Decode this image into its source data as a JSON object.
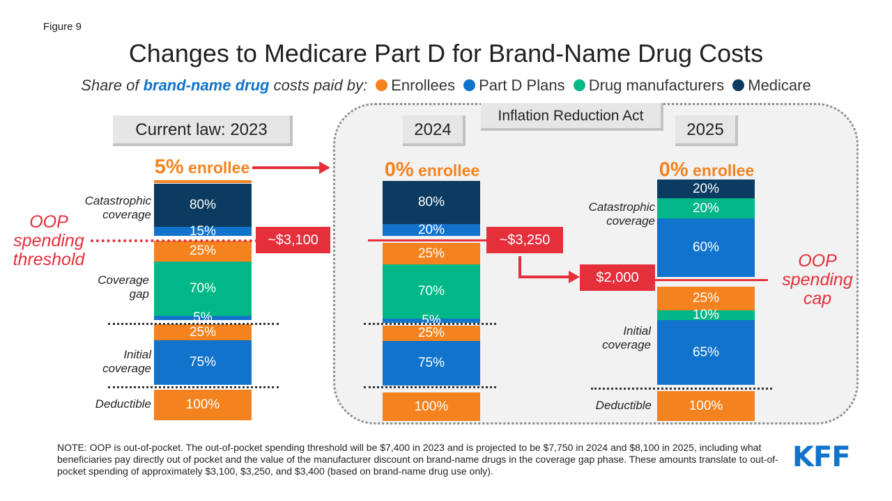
{
  "figure_label": "Figure 9",
  "title": "Changes to Medicare Part D for Brand-Name Drug Costs",
  "legend": {
    "prefix": "Share of",
    "highlight": "brand-name drug",
    "suffix": "costs paid by:",
    "items": [
      {
        "label": "Enrollees",
        "color": "#f4831f"
      },
      {
        "label": "Part D Plans",
        "color": "#1173cb"
      },
      {
        "label": "Drug manufacturers",
        "color": "#00b887"
      },
      {
        "label": "Medicare",
        "color": "#0b3b60"
      }
    ]
  },
  "ira_label": "Inflation Reduction Act",
  "columns": {
    "c2023": {
      "label": "Current law: 2023",
      "enrollee_pct": "5%",
      "enrollee_word": "enrollee"
    },
    "c2024": {
      "label": "2024",
      "enrollee_pct": "0%",
      "enrollee_word": "enrollee"
    },
    "c2025": {
      "label": "2025",
      "enrollee_pct": "0%",
      "enrollee_word": "enrollee"
    }
  },
  "phases": {
    "catastrophic": "Catastrophic coverage",
    "gap": "Coverage gap",
    "initial": "Initial coverage",
    "deductible": "Deductible"
  },
  "markers": {
    "threshold_2023": "~$3,100",
    "threshold_2024": "~$3,250",
    "cap_2025": "$2,000",
    "oop_threshold_label": "OOP spending threshold",
    "oop_cap_label": "OOP spending cap"
  },
  "chart_data": {
    "type": "bar",
    "title": "Changes to Medicare Part D for Brand-Name Drug Costs",
    "categories": [
      "Current law: 2023",
      "2024",
      "2025"
    ],
    "stacks": [
      {
        "column": "Current law: 2023",
        "phases": [
          {
            "phase": "Catastrophic coverage",
            "shares": {
              "Enrollees": 5,
              "Medicare": 80,
              "Part D Plans": 15
            }
          },
          {
            "phase": "Coverage gap",
            "shares": {
              "Enrollees": 25,
              "Drug manufacturers": 70,
              "Part D Plans": 5
            }
          },
          {
            "phase": "Initial coverage",
            "shares": {
              "Enrollees": 25,
              "Part D Plans": 75
            }
          },
          {
            "phase": "Deductible",
            "shares": {
              "Enrollees": 100
            }
          }
        ]
      },
      {
        "column": "2024",
        "phases": [
          {
            "phase": "Catastrophic coverage",
            "shares": {
              "Enrollees": 0,
              "Medicare": 80,
              "Part D Plans": 20
            }
          },
          {
            "phase": "Coverage gap",
            "shares": {
              "Enrollees": 25,
              "Drug manufacturers": 70,
              "Part D Plans": 5
            }
          },
          {
            "phase": "Initial coverage",
            "shares": {
              "Enrollees": 25,
              "Part D Plans": 75
            }
          },
          {
            "phase": "Deductible",
            "shares": {
              "Enrollees": 100
            }
          }
        ]
      },
      {
        "column": "2025",
        "phases": [
          {
            "phase": "Catastrophic coverage",
            "shares": {
              "Enrollees": 0,
              "Medicare": 20,
              "Drug manufacturers": 20,
              "Part D Plans": 60
            }
          },
          {
            "phase": "Initial coverage",
            "shares": {
              "Enrollees": 25,
              "Drug manufacturers": 10,
              "Part D Plans": 65
            }
          },
          {
            "phase": "Deductible",
            "shares": {
              "Enrollees": 100
            }
          }
        ]
      }
    ]
  },
  "bars": {
    "c2023": [
      {
        "label": "",
        "color": "#f4831f"
      },
      {
        "label": "80%",
        "color": "#0b3b60"
      },
      {
        "label": "15%",
        "color": "#1173cb"
      },
      {
        "label": "25%",
        "color": "#f4831f"
      },
      {
        "label": "70%",
        "color": "#00b887"
      },
      {
        "label": "5%",
        "color": "#1173cb"
      },
      {
        "label": "25%",
        "color": "#f4831f"
      },
      {
        "label": "75%",
        "color": "#1173cb"
      },
      {
        "label": "100%",
        "color": "#f4831f"
      }
    ],
    "c2024": [
      {
        "label": "80%",
        "color": "#0b3b60"
      },
      {
        "label": "20%",
        "color": "#1173cb"
      },
      {
        "label": "25%",
        "color": "#f4831f"
      },
      {
        "label": "70%",
        "color": "#00b887"
      },
      {
        "label": "5%",
        "color": "#1173cb"
      },
      {
        "label": "25%",
        "color": "#f4831f"
      },
      {
        "label": "75%",
        "color": "#1173cb"
      },
      {
        "label": "100%",
        "color": "#f4831f"
      }
    ],
    "c2025": [
      {
        "label": "20%",
        "color": "#0b3b60"
      },
      {
        "label": "20%",
        "color": "#00b887"
      },
      {
        "label": "60%",
        "color": "#1173cb"
      },
      {
        "label": "25%",
        "color": "#f4831f"
      },
      {
        "label": "10%",
        "color": "#00b887"
      },
      {
        "label": "65%",
        "color": "#1173cb"
      },
      {
        "label": "100%",
        "color": "#f4831f"
      }
    ]
  },
  "note": "NOTE: OOP is out-of-pocket. The out-of-pocket spending threshold will be $7,400 in 2023 and is projected to be $7,750 in 2024 and $8,100 in 2025, including what beneficiaries pay directly out of pocket and the value of the manufacturer discount on brand-name drugs in the coverage gap phase. These amounts translate to out-of-pocket spending of approximately $3,100, $3,250, and $3,400 (based on brand-name drug use only).",
  "logo": "KFF"
}
